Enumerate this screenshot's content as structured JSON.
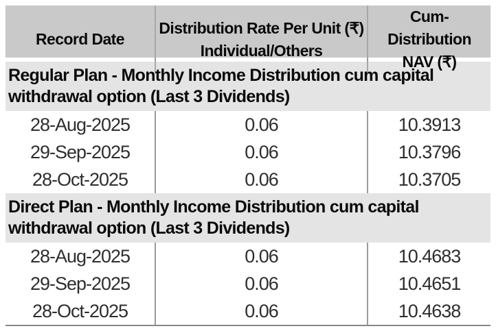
{
  "table": {
    "header": {
      "record_date": "Record Date",
      "rate_line1": "Distribution Rate Per Unit (₹)",
      "rate_line2": "Individual/Others",
      "nav_line1": "Cum-Distribution",
      "nav_line2": "NAV (₹)"
    },
    "sections": [
      {
        "title": "Regular Plan - Monthly Income Distribution cum capital withdrawal option (Last 3 Dividends)",
        "rows": [
          {
            "record_date": "28-Aug-2025",
            "rate": "0.06",
            "nav": "10.3913"
          },
          {
            "record_date": "29-Sep-2025",
            "rate": "0.06",
            "nav": "10.3796"
          },
          {
            "record_date": "28-Oct-2025",
            "rate": "0.06",
            "nav": "10.3705"
          }
        ]
      },
      {
        "title": "Direct Plan - Monthly Income Distribution cum capital withdrawal option (Last 3 Dividends)",
        "rows": [
          {
            "record_date": "28-Aug-2025",
            "rate": "0.06",
            "nav": "10.4683"
          },
          {
            "record_date": "29-Sep-2025",
            "rate": "0.06",
            "nav": "10.4651"
          },
          {
            "record_date": "28-Oct-2025",
            "rate": "0.06",
            "nav": "10.4638"
          }
        ]
      }
    ],
    "colors": {
      "header_bg": "#c9c9c9",
      "section_bg": "#e4e4e4",
      "column_divider": "#9b9b9b",
      "bottom_border": "#878787",
      "header_text": "#0a0a0a",
      "data_text": "#2e2e2e"
    }
  }
}
